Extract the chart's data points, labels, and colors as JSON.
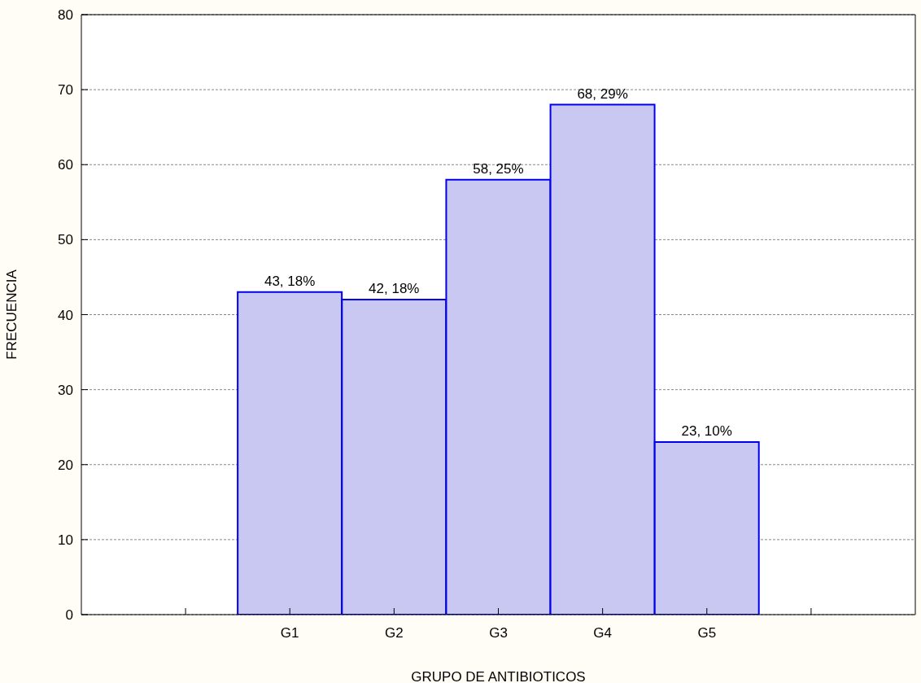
{
  "chart_data": {
    "type": "bar",
    "xlabel": "GRUPO DE ANTIBIOTICOS",
    "ylabel": "FRECUENCIA",
    "categories": [
      null,
      "G1",
      "G2",
      "G3",
      "G4",
      "G5",
      null
    ],
    "values": [
      null,
      43,
      42,
      58,
      68,
      23,
      null
    ],
    "value_labels": [
      null,
      "43, 18%",
      "42, 18%",
      "58, 25%",
      "68, 29%",
      "23, 10%",
      null
    ],
    "color": "#c8c8f2",
    "ylim": [
      0,
      80
    ],
    "yticks": [
      0,
      10,
      20,
      30,
      40,
      50,
      60,
      70,
      80
    ],
    "grid": "y"
  }
}
